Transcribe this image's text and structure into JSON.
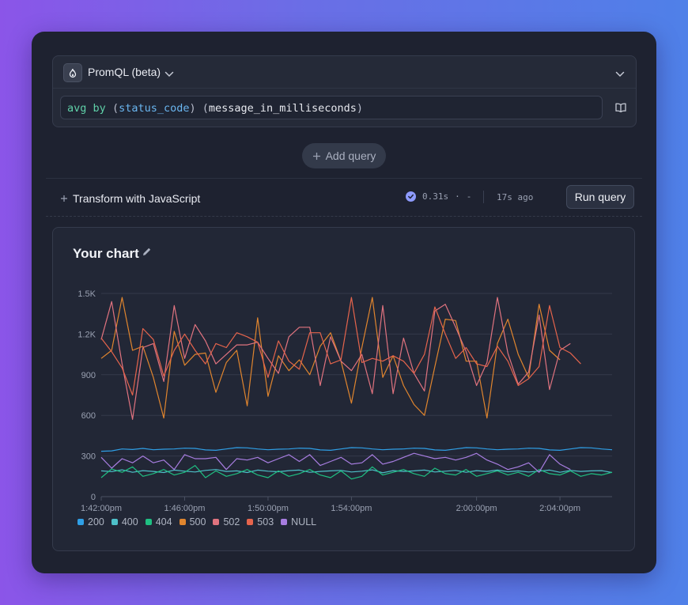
{
  "editor": {
    "language_label": "PromQL (beta)",
    "query": {
      "kw_avg": "avg",
      "kw_by": "by",
      "open1": "(",
      "label": "status_code",
      "close1": ")",
      "open2": "(",
      "metric": "message_in_milliseconds",
      "close2": ")"
    }
  },
  "add_query_label": "Add query",
  "transform_label": "Transform with JavaScript",
  "status": {
    "duration": "0.31s",
    "dot": "·",
    "dash": "-",
    "ago": "17s ago"
  },
  "run_label": "Run query",
  "chart_title": "Your chart",
  "chart_data": {
    "type": "line",
    "y_ticks": [
      "0",
      "300",
      "600",
      "900",
      "1.2K",
      "1.5K"
    ],
    "ylim": [
      0,
      1500
    ],
    "x_ticks": [
      {
        "label": "1:42:00pm",
        "i": 0
      },
      {
        "label": "1:46:00pm",
        "i": 8
      },
      {
        "label": "1:50:00pm",
        "i": 16
      },
      {
        "label": "1:54:00pm",
        "i": 24
      },
      {
        "label": "2:00:00pm",
        "i": 36
      },
      {
        "label": "2:04:00pm",
        "i": 44
      }
    ],
    "grid": true,
    "series": [
      {
        "name": "200",
        "color": "#2f9fe6",
        "values": [
          335,
          338,
          352,
          348,
          356,
          346,
          350,
          352,
          358,
          356,
          345,
          342,
          352,
          362,
          360,
          352,
          346,
          350,
          352,
          358,
          356,
          345,
          342,
          352,
          362,
          360,
          352,
          346,
          350,
          352,
          358,
          356,
          345,
          342,
          352,
          362,
          360,
          352,
          346,
          350,
          352,
          358,
          356,
          345,
          342,
          352,
          362,
          360,
          352,
          346
        ]
      },
      {
        "name": "400",
        "color": "#4ec0c9",
        "values": [
          190,
          185,
          198,
          180,
          192,
          186,
          178,
          196,
          188,
          182,
          194,
          200,
          186,
          190,
          178,
          196,
          188,
          184,
          192,
          196,
          180,
          186,
          190,
          194,
          182,
          188,
          198,
          176,
          192,
          186,
          190,
          196,
          182,
          188,
          194,
          180,
          192,
          186,
          196,
          184,
          190,
          182,
          188,
          196,
          180,
          194,
          186,
          190,
          192,
          178
        ]
      },
      {
        "name": "404",
        "color": "#1fbf82",
        "values": [
          140,
          205,
          180,
          220,
          150,
          170,
          200,
          160,
          180,
          230,
          140,
          190,
          150,
          170,
          200,
          160,
          140,
          190,
          150,
          170,
          200,
          160,
          140,
          190,
          130,
          150,
          220,
          160,
          180,
          200,
          170,
          150,
          210,
          170,
          160,
          200,
          150,
          170,
          190,
          160,
          180,
          150,
          200,
          170,
          160,
          190,
          150,
          170,
          160,
          180
        ]
      },
      {
        "name": "500",
        "color": "#e0852e",
        "values": [
          1020,
          1080,
          1470,
          1080,
          1110,
          880,
          580,
          1220,
          970,
          1050,
          1060,
          770,
          990,
          1080,
          670,
          1320,
          740,
          1040,
          930,
          1010,
          900,
          1110,
          1210,
          1000,
          690,
          1100,
          1470,
          880,
          1040,
          820,
          680,
          600,
          960,
          1310,
          1300,
          1000,
          1000,
          580,
          1130,
          1310,
          1050,
          880,
          1420,
          1080,
          1010
        ]
      },
      {
        "name": "502",
        "color": "#e0737f",
        "values": [
          1160,
          1440,
          980,
          570,
          1100,
          1130,
          850,
          1410,
          1020,
          1270,
          1150,
          980,
          1050,
          1120,
          1120,
          1140,
          1020,
          910,
          1180,
          1250,
          1250,
          820,
          1180,
          1000,
          930,
          1050,
          760,
          1410,
          760,
          1170,
          910,
          780,
          1370,
          1420,
          1250,
          1070,
          820,
          990,
          1470,
          1060,
          830,
          920,
          1340,
          790,
          1080,
          1130
        ]
      },
      {
        "name": "503",
        "color": "#e5644c",
        "values": [
          1170,
          1070,
          950,
          750,
          1240,
          1160,
          890,
          1080,
          1200,
          1080,
          980,
          1130,
          1100,
          1210,
          1180,
          1140,
          880,
          1150,
          1000,
          940,
          1210,
          1210,
          980,
          1010,
          1470,
          990,
          1020,
          1000,
          1040,
          1000,
          910,
          1050,
          1400,
          1200,
          1020,
          1100,
          980,
          960,
          1110,
          1000,
          820,
          870,
          960,
          1410,
          1100,
          1060,
          980
        ]
      },
      {
        "name": "NULL",
        "color": "#a77de0",
        "values": [
          290,
          210,
          280,
          250,
          300,
          250,
          270,
          200,
          310,
          280,
          280,
          290,
          200,
          280,
          270,
          290,
          250,
          280,
          310,
          260,
          310,
          230,
          260,
          290,
          240,
          250,
          310,
          240,
          260,
          290,
          320,
          300,
          280,
          290,
          270,
          290,
          320,
          270,
          240,
          200,
          220,
          250,
          180,
          310,
          240,
          200
        ]
      }
    ]
  }
}
